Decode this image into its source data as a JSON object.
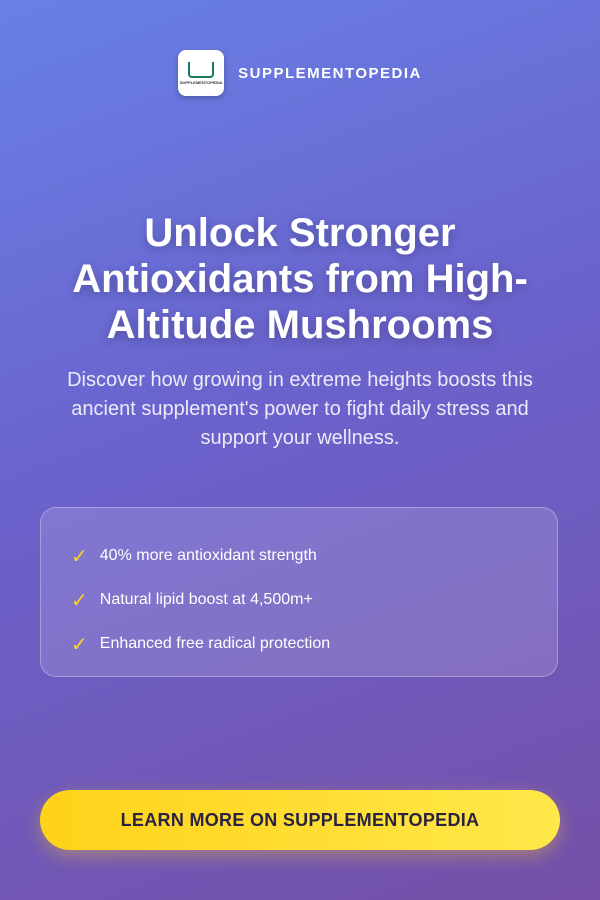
{
  "header": {
    "logo_text": "SUPPLEMENTOPEDIA",
    "brand": "SUPPLEMENTOPEDIA"
  },
  "headline": "Unlock Stronger Antioxidants from High-Altitude Mushrooms",
  "subheadline": "Discover how growing in extreme heights boosts this ancient supplement's power to fight daily stress and support your wellness.",
  "benefits": [
    {
      "check": "✓",
      "text": "40% more antioxidant strength"
    },
    {
      "check": "✓",
      "text": "Natural lipid boost at 4,500m+"
    },
    {
      "check": "✓",
      "text": "Enhanced free radical protection"
    }
  ],
  "cta": "LEARN MORE ON SUPPLEMENTOPEDIA"
}
